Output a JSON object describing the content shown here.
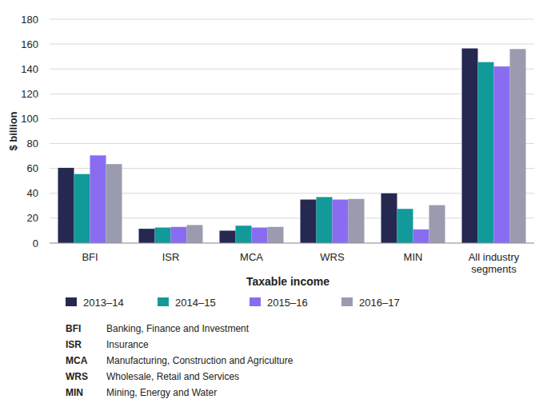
{
  "chart_data": {
    "type": "bar",
    "x_label": "Taxable income",
    "y_label": "$ billion",
    "categories": [
      "BFI",
      "ISR",
      "MCA",
      "WRS",
      "MIN",
      "All industry segments"
    ],
    "series": [
      {
        "name": "2013–14",
        "color": "#252850",
        "values": [
          60.5,
          11.5,
          10,
          35,
          40,
          156.5
        ]
      },
      {
        "name": "2014–15",
        "color": "#12999a",
        "values": [
          55.5,
          12.5,
          14,
          37,
          27.5,
          145.5
        ]
      },
      {
        "name": "2015–16",
        "color": "#8a6cf0",
        "values": [
          70.5,
          13,
          12.5,
          35,
          11,
          142
        ]
      },
      {
        "name": "2016–17",
        "color": "#9a9bae",
        "values": [
          63.5,
          14.5,
          13,
          35.5,
          30.5,
          156
        ]
      }
    ],
    "ylim": [
      0,
      180
    ],
    "yticks": [
      0,
      20,
      40,
      60,
      80,
      100,
      120,
      140,
      160,
      180
    ],
    "grid": true,
    "legend": "bottom",
    "annotations": [
      {
        "label": "BFI",
        "text": "Banking, Finance and Investment"
      },
      {
        "label": "ISR",
        "text": "Insurance"
      },
      {
        "label": "MCA",
        "text": "Manufacturing, Construction and Agriculture"
      },
      {
        "label": "WRS",
        "text": "Wholesale, Retail and Services"
      },
      {
        "label": "MIN",
        "text": "Mining, Energy and Water"
      }
    ]
  }
}
